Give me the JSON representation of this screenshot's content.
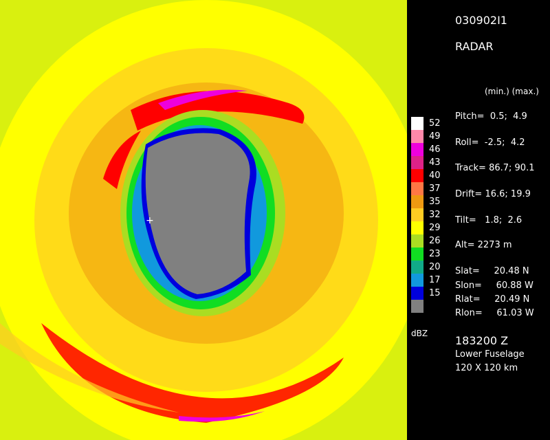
{
  "header": {
    "id": "030902I1",
    "type": "RADAR"
  },
  "colnote": "(min.) (max.)",
  "params": [
    {
      "label": "Pitch=",
      "min": "0.5;",
      "max": "4.9"
    },
    {
      "label": "Roll=",
      "min": "-2.5;",
      "max": "4.2"
    },
    {
      "label": "Track=",
      "min": "86.7;",
      "max": "90.1"
    },
    {
      "label": "Drift=",
      "min": "16.6;",
      "max": "19.9"
    },
    {
      "label": "Tilt=",
      "min": "1.8;",
      "max": "2.6"
    }
  ],
  "alt": "Alt= 2273 m",
  "coords": [
    {
      "label": "Slat=",
      "value": "20.48 N"
    },
    {
      "label": "Slon=",
      "value": "60.88 W"
    },
    {
      "label": "Rlat=",
      "value": "20.49 N"
    },
    {
      "label": "Rlon=",
      "value": "61.03 W"
    }
  ],
  "time": "183200 Z",
  "antenna": "Lower Fuselage",
  "domain": "120 X 120 km",
  "scale": {
    "unit": "dBZ",
    "levels": [
      {
        "label": "52",
        "color": "#ffffff"
      },
      {
        "label": "49",
        "color": "#ff88aa"
      },
      {
        "label": "46",
        "color": "#ee00dd"
      },
      {
        "label": "43",
        "color": "#dd2288"
      },
      {
        "label": "40",
        "color": "#ff0000"
      },
      {
        "label": "37",
        "color": "#ff7744"
      },
      {
        "label": "35",
        "color": "#ee9911"
      },
      {
        "label": "32",
        "color": "#ffcc22"
      },
      {
        "label": "29",
        "color": "#ffff00"
      },
      {
        "label": "26",
        "color": "#aadd22"
      },
      {
        "label": "23",
        "color": "#11dd22"
      },
      {
        "label": "20",
        "color": "#11aa88"
      },
      {
        "label": "17",
        "color": "#1199dd"
      },
      {
        "label": "15",
        "color": "#0000dd"
      },
      {
        "label": "",
        "color": "#808080"
      }
    ]
  }
}
